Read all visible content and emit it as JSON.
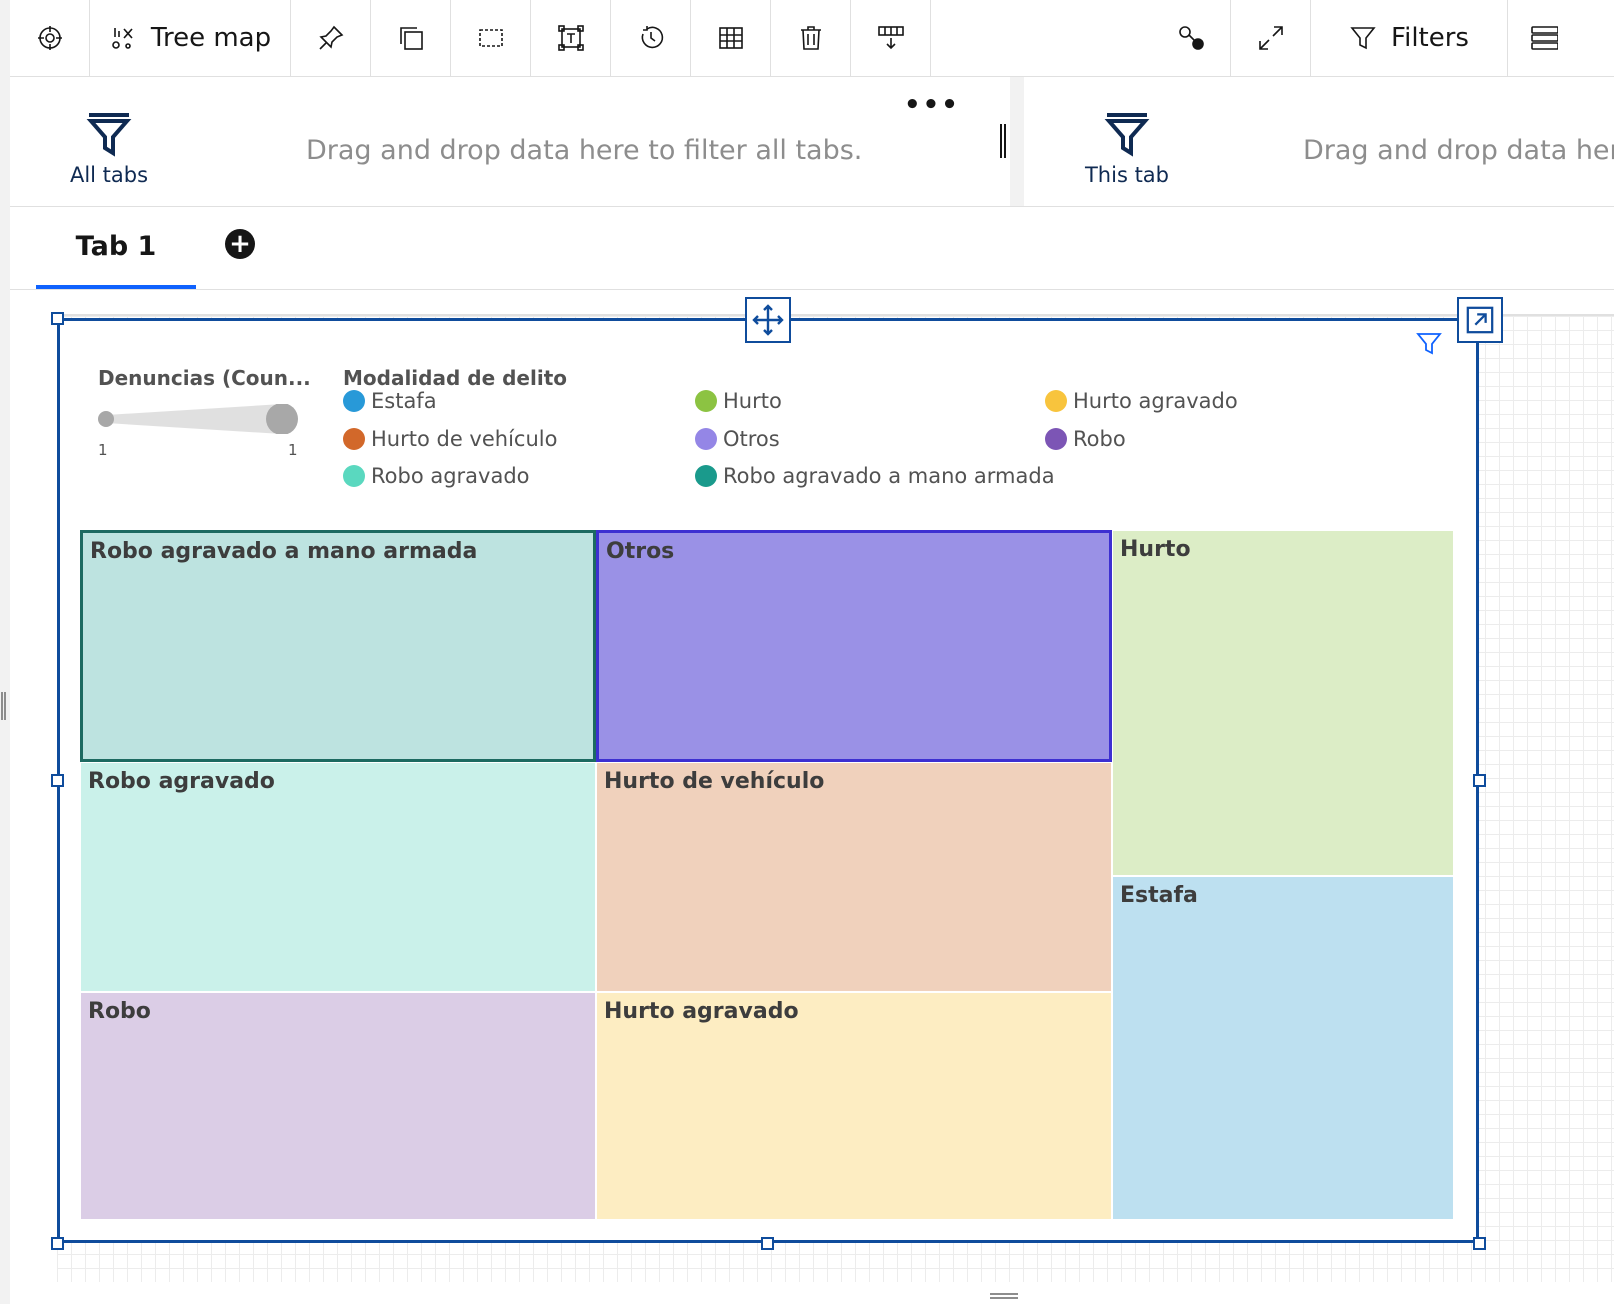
{
  "toolbar": {
    "items": [
      {
        "name": "navigate-icon",
        "label": ""
      },
      {
        "name": "visualization-type-icon",
        "label": "Tree map"
      },
      {
        "name": "pin-icon",
        "label": ""
      },
      {
        "name": "duplicate-icon",
        "label": ""
      },
      {
        "name": "select-area-icon",
        "label": ""
      },
      {
        "name": "text-frame-icon",
        "label": ""
      },
      {
        "name": "refresh-icon",
        "label": ""
      },
      {
        "name": "table-icon",
        "label": ""
      },
      {
        "name": "delete-icon",
        "label": ""
      },
      {
        "name": "column-insert-icon",
        "label": ""
      }
    ],
    "right_items": [
      {
        "name": "relationships-icon",
        "label": ""
      },
      {
        "name": "fullscreen-icon",
        "label": ""
      },
      {
        "name": "filter-icon",
        "label": "Filters"
      },
      {
        "name": "properties-icon",
        "label": ""
      }
    ]
  },
  "filter_bar": {
    "all_tabs_label": "All tabs",
    "all_tabs_hint": "Drag and drop data here to filter all tabs.",
    "this_tab_label": "This tab",
    "this_tab_hint": "Drag and drop data here",
    "overflow": "•••"
  },
  "tabs": [
    {
      "label": "Tab 1",
      "selected": true
    }
  ],
  "add_tab": "+",
  "widget": {
    "size_legend": {
      "title": "Denuncias (Coun...",
      "min": "1",
      "max": "1"
    },
    "color_legend": {
      "title": "Modalidad de delito",
      "items": [
        {
          "label": "Estafa",
          "color": "#2899d8"
        },
        {
          "label": "Hurto",
          "color": "#8cc342"
        },
        {
          "label": "Hurto agravado",
          "color": "#f8c43d"
        },
        {
          "label": "Hurto de vehículo",
          "color": "#d2682a"
        },
        {
          "label": "Otros",
          "color": "#9486e6"
        },
        {
          "label": "Robo",
          "color": "#7c55b5"
        },
        {
          "label": "Robo agravado",
          "color": "#5ad8bf"
        },
        {
          "label": "Robo agravado a mano armada",
          "color": "#1a9a8c"
        }
      ]
    },
    "treemap": [
      {
        "label": "Robo agravado a mano armada",
        "fill": "#bde3e0",
        "stroke": "#1c6a61",
        "highlight": true
      },
      {
        "label": "Otros",
        "fill": "#9a91e6",
        "stroke": "#3d2fd1",
        "highlight": true
      },
      {
        "label": "Hurto",
        "fill": "#dcedc6",
        "stroke": "",
        "highlight": false
      },
      {
        "label": "Robo agravado",
        "fill": "#caf1ea",
        "stroke": "",
        "highlight": false
      },
      {
        "label": "Hurto de vehículo",
        "fill": "#f0d1bc",
        "stroke": "",
        "highlight": false
      },
      {
        "label": "Estafa",
        "fill": "#bde0f0",
        "stroke": "",
        "highlight": false
      },
      {
        "label": "Robo",
        "fill": "#dbcde6",
        "stroke": "",
        "highlight": false
      },
      {
        "label": "Hurto agravado",
        "fill": "#fdedc2",
        "stroke": "",
        "highlight": false
      }
    ]
  }
}
